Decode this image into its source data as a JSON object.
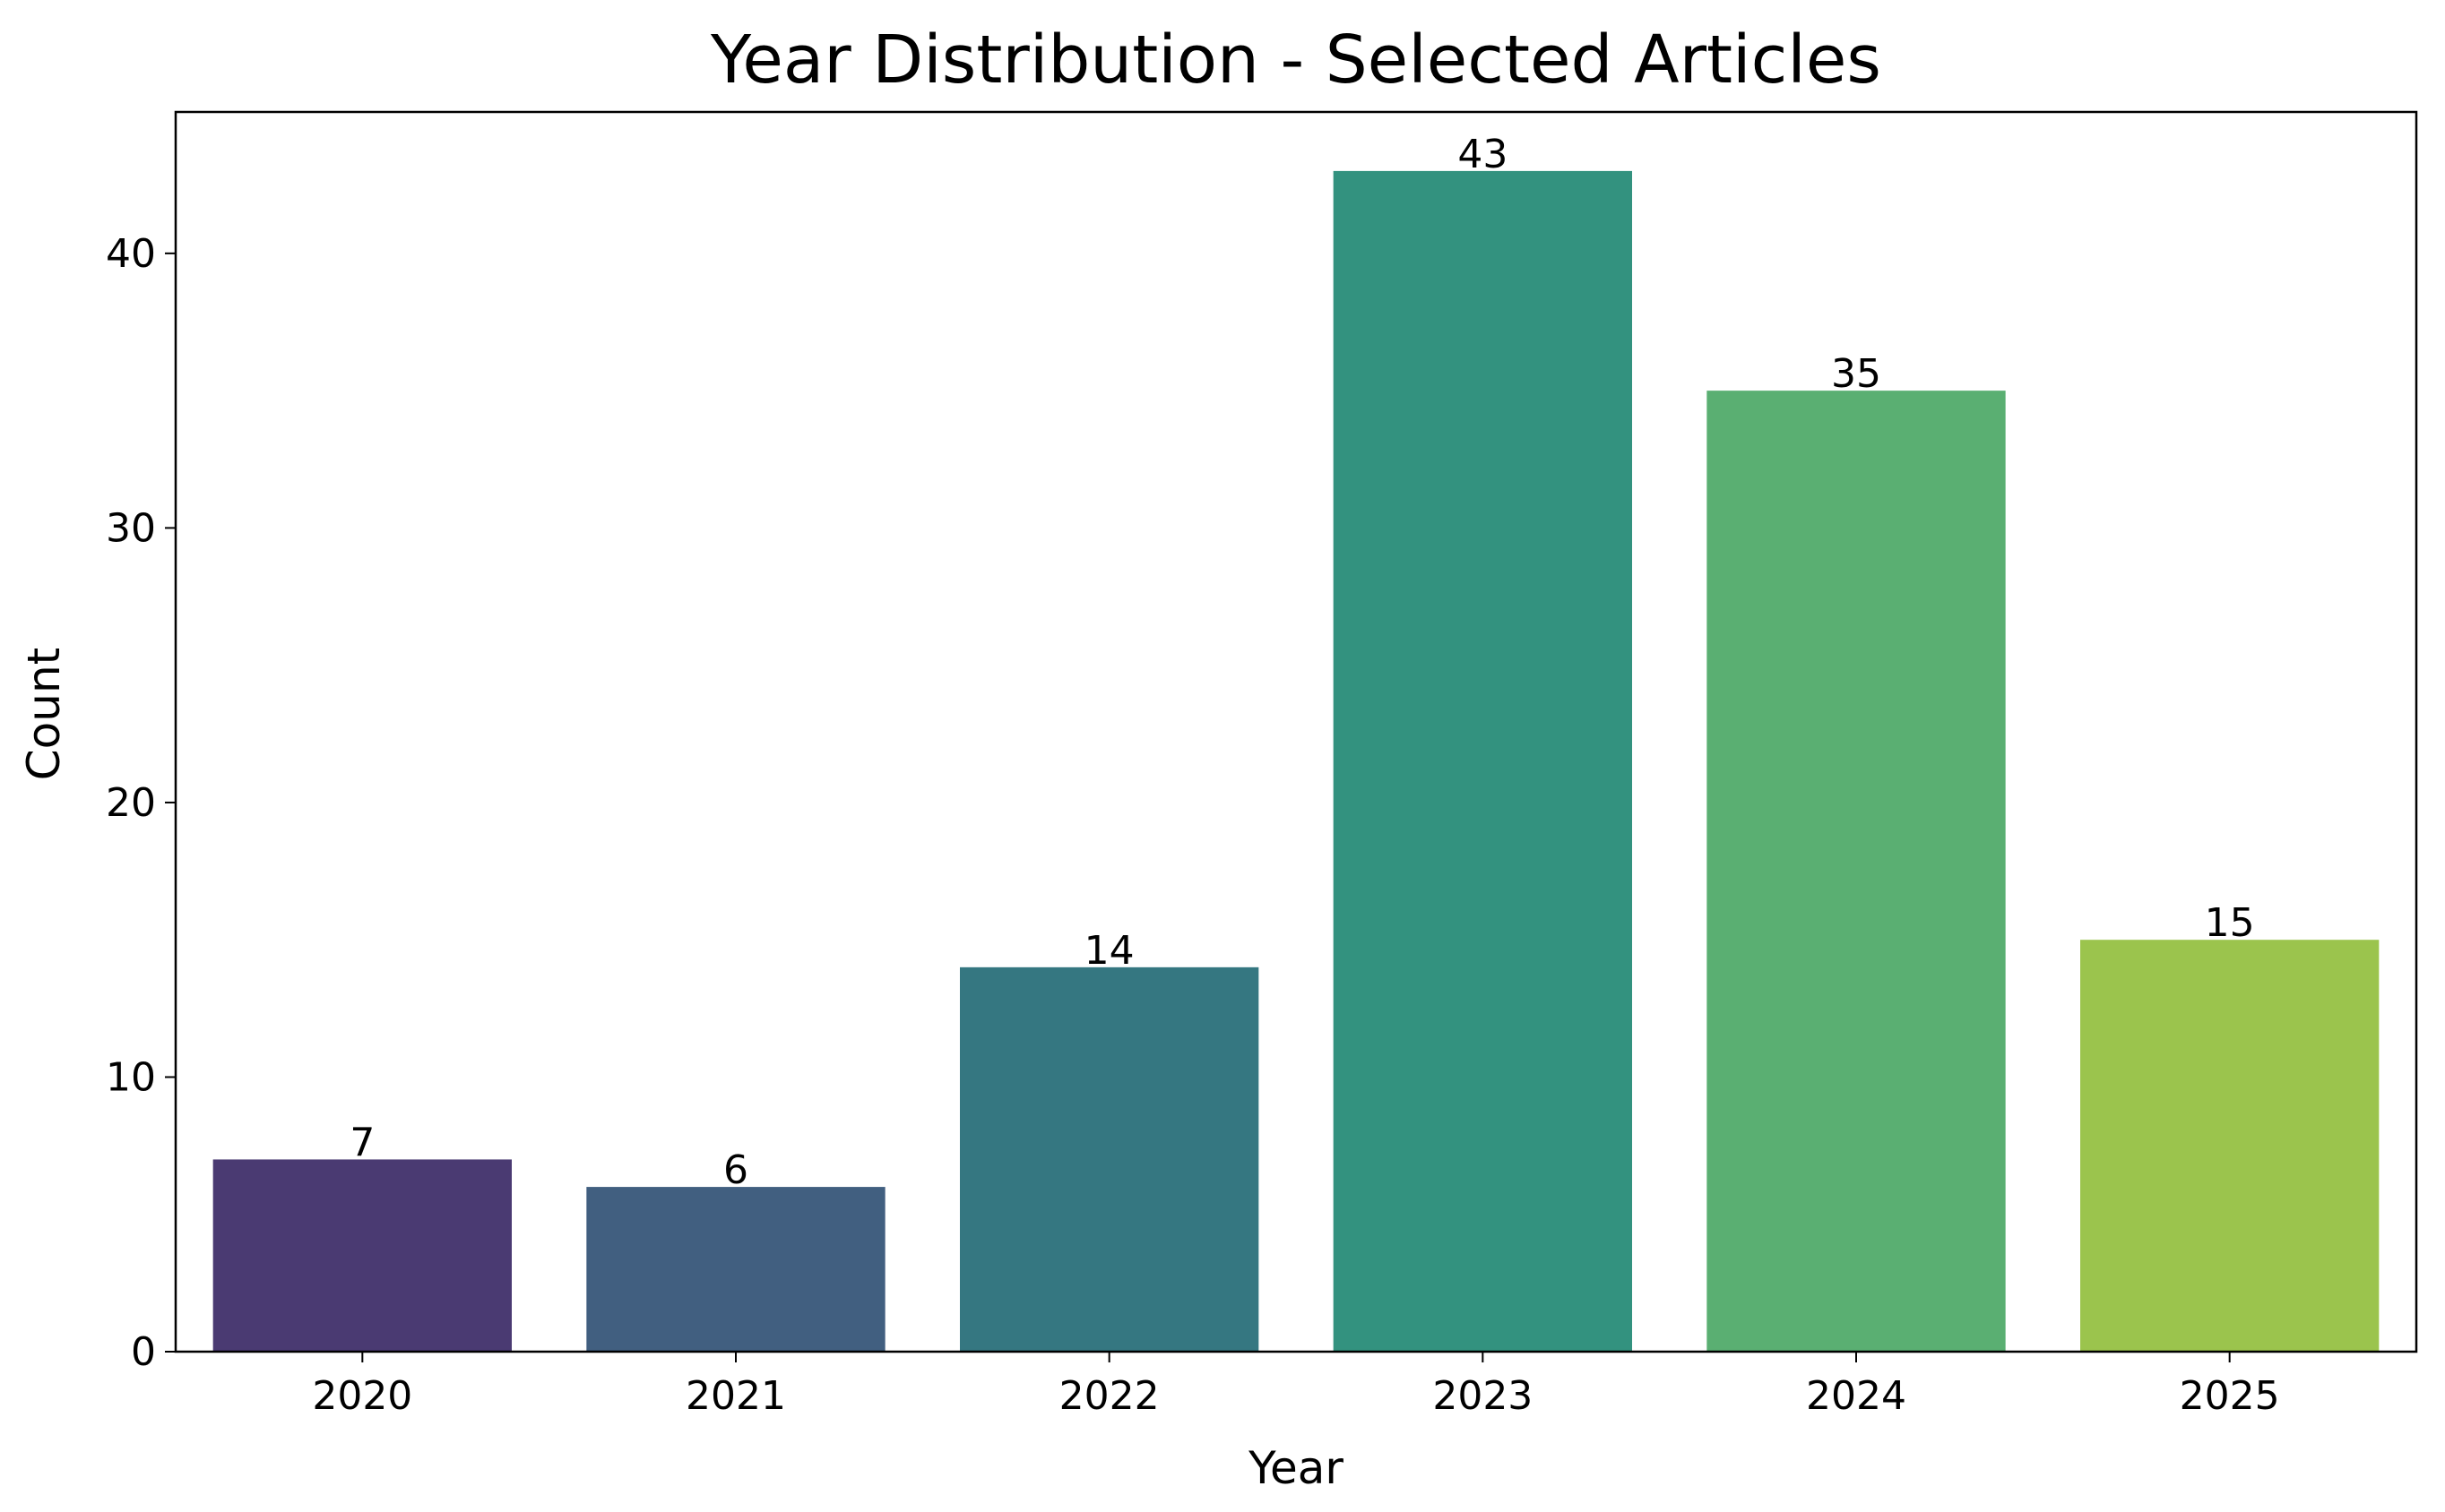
{
  "chart_data": {
    "type": "bar",
    "title": "Year Distribution - Selected Articles",
    "xlabel": "Year",
    "ylabel": "Count",
    "categories": [
      "2020",
      "2021",
      "2022",
      "2023",
      "2024",
      "2025"
    ],
    "values": [
      7,
      6,
      14,
      43,
      35,
      15
    ],
    "value_labels": [
      "7",
      "6",
      "14",
      "43",
      "35",
      "15"
    ],
    "colors": [
      "#4a3a72",
      "#415f80",
      "#357781",
      "#33927f",
      "#5aaf72",
      "#9bc44d"
    ],
    "ylim": [
      0,
      45.15
    ],
    "yticks": [
      0,
      10,
      20,
      30,
      40
    ],
    "ytick_labels": [
      "0",
      "10",
      "20",
      "30",
      "40"
    ],
    "grid": false,
    "legend": false
  }
}
